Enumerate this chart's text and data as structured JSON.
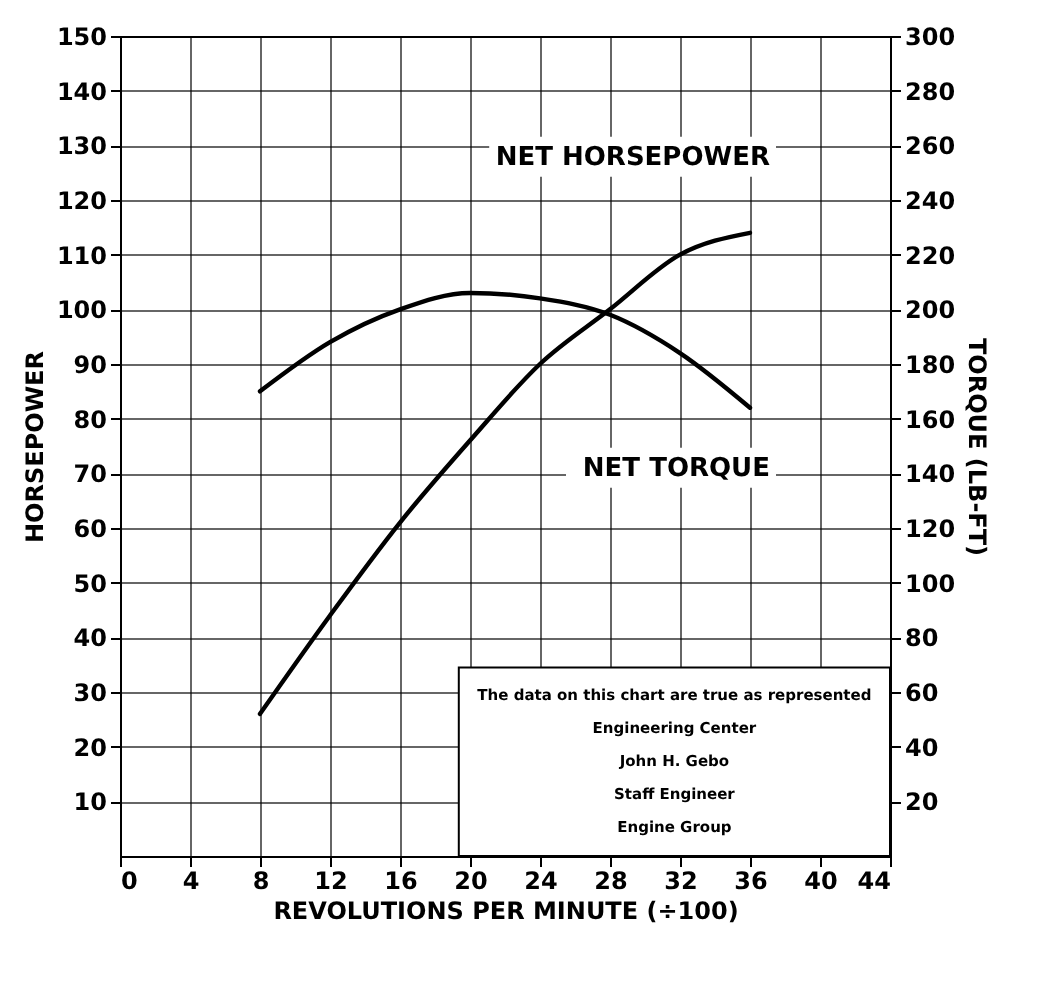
{
  "chart_data": {
    "type": "line",
    "xlabel": "REVOLUTIONS PER MINUTE (÷100)",
    "ylabel": "HORSEPOWER",
    "y2label": "TORQUE (LB-FT)",
    "x": [
      8,
      12,
      16,
      20,
      24,
      28,
      32,
      36
    ],
    "series": [
      {
        "name": "NET HORSEPOWER",
        "color": "#000000",
        "values": [
          26,
          44,
          61,
          76,
          90,
          100,
          110,
          114
        ]
      },
      {
        "name": "NET TORQUE",
        "color": "#000000",
        "axis": "y2",
        "values": [
          170,
          188,
          200,
          206,
          204,
          198,
          184,
          164
        ]
      }
    ],
    "xlim": [
      0,
      44
    ],
    "xticks": [
      0,
      4,
      8,
      12,
      16,
      20,
      24,
      28,
      32,
      36,
      40,
      44
    ],
    "ylim": [
      0,
      150
    ],
    "yticks": [
      10,
      20,
      30,
      40,
      50,
      60,
      70,
      80,
      90,
      100,
      110,
      120,
      130,
      140,
      150
    ],
    "y2lim": [
      0,
      300
    ],
    "y2ticks": [
      20,
      40,
      60,
      80,
      100,
      120,
      140,
      160,
      180,
      200,
      220,
      240,
      260,
      280,
      300
    ],
    "grid": true,
    "legend": false,
    "marker": "none",
    "line_style": "solid",
    "annotations": [
      "The data on this chart are true as represented",
      "Engineering Center",
      "John H. Gebo",
      "Staff Engineer",
      "Engine Group"
    ]
  }
}
